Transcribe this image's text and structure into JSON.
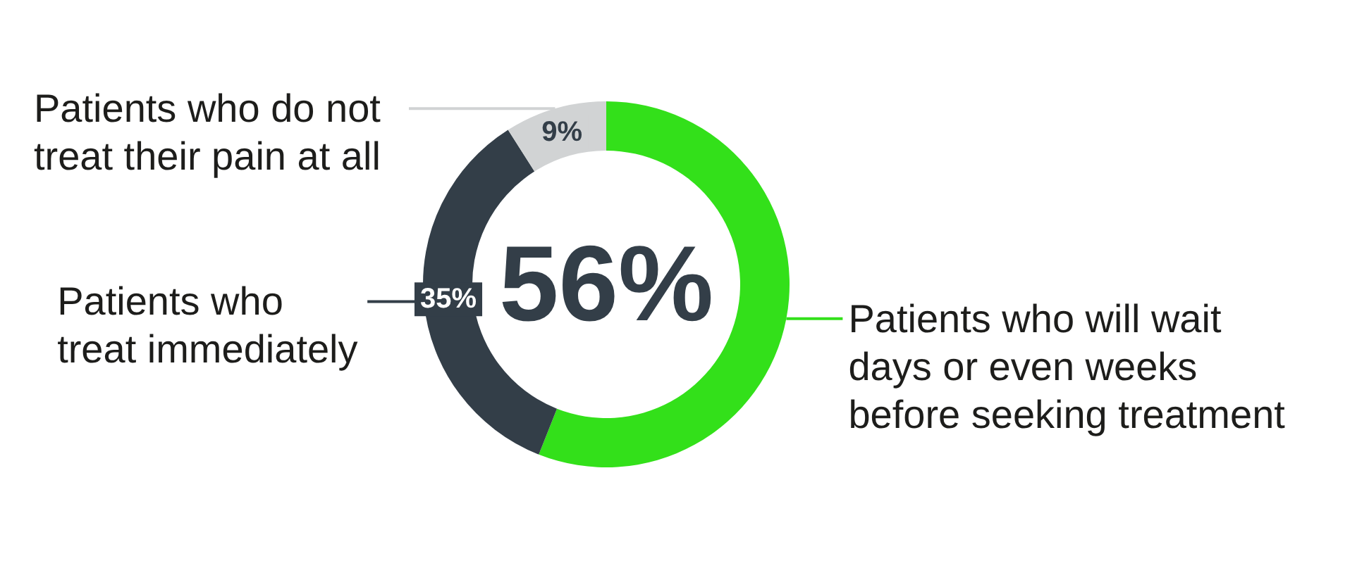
{
  "chart_data": {
    "type": "donut",
    "categories": [
      "Patients who will wait days or even weeks before seeking treatment",
      "Patients who treat immediately",
      "Patients who do not treat their pain at all"
    ],
    "values": [
      56,
      35,
      9
    ],
    "colors": [
      "#33e01a",
      "#333e48",
      "#d1d3d4"
    ],
    "value_labels": [
      "56%",
      "35%",
      "9%"
    ]
  }
}
